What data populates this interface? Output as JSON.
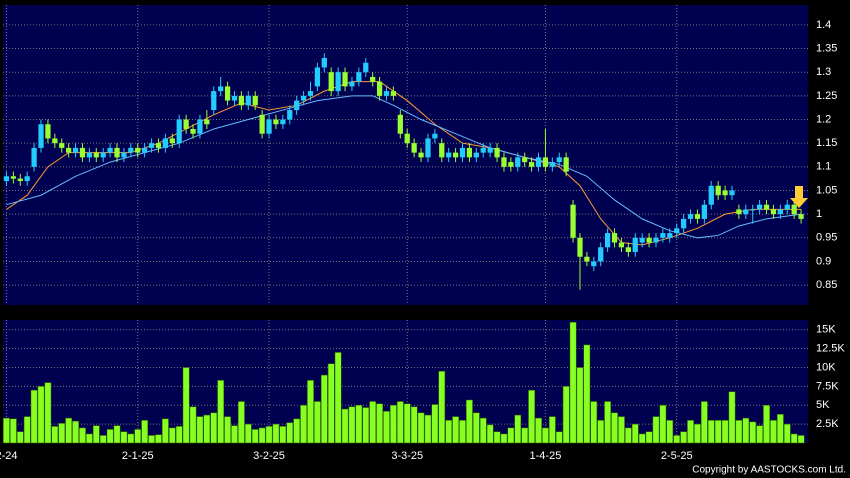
{
  "chart_data": {
    "type": "candlestick",
    "copyright": "Copyright by AASTOCKS.com Ltd.",
    "up_color": "#22ccff",
    "down_color": "#99ff33",
    "volume_color": "#88ff22",
    "ylim": [
      0.808,
      1.442
    ],
    "yticks": [
      1.4,
      1.35,
      1.3,
      1.25,
      1.2,
      1.15,
      1.1,
      1.05,
      1,
      0.95,
      0.9,
      0.85
    ],
    "xlim": [
      -0.5,
      116
    ],
    "xticks": [
      {
        "value": 0,
        "label": "2-24"
      },
      {
        "value": 19,
        "label": "2-1-25"
      },
      {
        "value": 38,
        "label": "3-2-25"
      },
      {
        "value": 58,
        "label": "3-3-25"
      },
      {
        "value": 78,
        "label": "1-4-25"
      },
      {
        "value": 97,
        "label": "2-5-25"
      }
    ],
    "volume_ylim": [
      0,
      16300
    ],
    "volume_ticks": [
      {
        "value": 15000,
        "label": "15K"
      },
      {
        "value": 12500,
        "label": "12.5K"
      },
      {
        "value": 10000,
        "label": "10K"
      },
      {
        "value": 7500,
        "label": "7.5K"
      },
      {
        "value": 5000,
        "label": "5K"
      },
      {
        "value": 2500,
        "label": "2.5K"
      }
    ],
    "grid": true,
    "ohlc": [
      [
        1.07,
        1.09,
        1.06,
        1.08
      ],
      [
        1.08,
        1.09,
        1.065,
        1.075
      ],
      [
        1.075,
        1.085,
        1.06,
        1.07
      ],
      [
        1.07,
        1.09,
        1.06,
        1.08
      ],
      [
        1.1,
        1.15,
        1.09,
        1.14
      ],
      [
        1.14,
        1.2,
        1.13,
        1.19
      ],
      [
        1.19,
        1.2,
        1.15,
        1.16
      ],
      [
        1.16,
        1.17,
        1.14,
        1.15
      ],
      [
        1.15,
        1.16,
        1.13,
        1.14
      ],
      [
        1.14,
        1.15,
        1.12,
        1.13
      ],
      [
        1.13,
        1.15,
        1.12,
        1.14
      ],
      [
        1.14,
        1.15,
        1.11,
        1.12
      ],
      [
        1.12,
        1.14,
        1.11,
        1.13
      ],
      [
        1.13,
        1.14,
        1.11,
        1.12
      ],
      [
        1.12,
        1.14,
        1.11,
        1.13
      ],
      [
        1.13,
        1.15,
        1.12,
        1.14
      ],
      [
        1.14,
        1.15,
        1.11,
        1.12
      ],
      [
        1.12,
        1.14,
        1.11,
        1.13
      ],
      [
        1.13,
        1.15,
        1.12,
        1.14
      ],
      [
        1.14,
        1.15,
        1.12,
        1.13
      ],
      [
        1.13,
        1.15,
        1.12,
        1.14
      ],
      [
        1.14,
        1.16,
        1.13,
        1.15
      ],
      [
        1.15,
        1.16,
        1.13,
        1.14
      ],
      [
        1.14,
        1.17,
        1.13,
        1.16
      ],
      [
        1.16,
        1.17,
        1.14,
        1.15
      ],
      [
        1.15,
        1.21,
        1.14,
        1.2
      ],
      [
        1.2,
        1.21,
        1.17,
        1.18
      ],
      [
        1.18,
        1.19,
        1.16,
        1.17
      ],
      [
        1.17,
        1.21,
        1.16,
        1.2
      ],
      [
        1.2,
        1.22,
        1.18,
        1.19
      ],
      [
        1.22,
        1.27,
        1.21,
        1.26
      ],
      [
        1.26,
        1.29,
        1.25,
        1.27
      ],
      [
        1.27,
        1.28,
        1.23,
        1.24
      ],
      [
        1.24,
        1.26,
        1.23,
        1.25
      ],
      [
        1.25,
        1.26,
        1.22,
        1.23
      ],
      [
        1.23,
        1.26,
        1.22,
        1.25
      ],
      [
        1.25,
        1.26,
        1.22,
        1.23
      ],
      [
        1.21,
        1.22,
        1.16,
        1.17
      ],
      [
        1.17,
        1.21,
        1.16,
        1.2
      ],
      [
        1.2,
        1.21,
        1.18,
        1.19
      ],
      [
        1.19,
        1.21,
        1.18,
        1.2
      ],
      [
        1.2,
        1.23,
        1.19,
        1.22
      ],
      [
        1.22,
        1.25,
        1.21,
        1.24
      ],
      [
        1.24,
        1.26,
        1.23,
        1.25
      ],
      [
        1.25,
        1.28,
        1.24,
        1.26
      ],
      [
        1.27,
        1.32,
        1.26,
        1.31
      ],
      [
        1.31,
        1.34,
        1.3,
        1.33
      ],
      [
        1.3,
        1.31,
        1.25,
        1.26
      ],
      [
        1.26,
        1.31,
        1.25,
        1.3
      ],
      [
        1.3,
        1.31,
        1.26,
        1.27
      ],
      [
        1.27,
        1.29,
        1.26,
        1.28
      ],
      [
        1.28,
        1.31,
        1.27,
        1.3
      ],
      [
        1.3,
        1.33,
        1.29,
        1.32
      ],
      [
        1.29,
        1.3,
        1.27,
        1.28
      ],
      [
        1.28,
        1.29,
        1.24,
        1.25
      ],
      [
        1.25,
        1.27,
        1.24,
        1.26
      ],
      [
        1.26,
        1.27,
        1.24,
        1.25
      ],
      [
        1.21,
        1.22,
        1.16,
        1.17
      ],
      [
        1.17,
        1.18,
        1.14,
        1.15
      ],
      [
        1.15,
        1.16,
        1.12,
        1.13
      ],
      [
        1.13,
        1.14,
        1.11,
        1.12
      ],
      [
        1.12,
        1.17,
        1.11,
        1.16
      ],
      [
        1.16,
        1.18,
        1.15,
        1.17
      ],
      [
        1.15,
        1.16,
        1.11,
        1.12
      ],
      [
        1.12,
        1.14,
        1.11,
        1.13
      ],
      [
        1.13,
        1.14,
        1.11,
        1.12
      ],
      [
        1.12,
        1.15,
        1.11,
        1.14
      ],
      [
        1.14,
        1.15,
        1.11,
        1.12
      ],
      [
        1.12,
        1.14,
        1.11,
        1.13
      ],
      [
        1.13,
        1.15,
        1.12,
        1.14
      ],
      [
        1.13,
        1.15,
        1.12,
        1.14
      ],
      [
        1.14,
        1.15,
        1.11,
        1.12
      ],
      [
        1.12,
        1.13,
        1.09,
        1.1
      ],
      [
        1.11,
        1.12,
        1.09,
        1.1
      ],
      [
        1.1,
        1.13,
        1.09,
        1.12
      ],
      [
        1.12,
        1.13,
        1.1,
        1.11
      ],
      [
        1.11,
        1.12,
        1.09,
        1.1
      ],
      [
        1.1,
        1.13,
        1.09,
        1.12
      ],
      [
        1.12,
        1.18,
        1.09,
        1.1
      ],
      [
        1.1,
        1.12,
        1.09,
        1.11
      ],
      [
        1.11,
        1.13,
        1.1,
        1.12
      ],
      [
        1.12,
        1.13,
        1.08,
        1.09
      ],
      [
        1.02,
        1.03,
        0.94,
        0.95
      ],
      [
        0.95,
        0.96,
        0.84,
        0.91
      ],
      [
        0.91,
        0.92,
        0.89,
        0.9
      ],
      [
        0.89,
        0.91,
        0.88,
        0.9
      ],
      [
        0.9,
        0.94,
        0.89,
        0.93
      ],
      [
        0.93,
        0.97,
        0.92,
        0.96
      ],
      [
        0.96,
        0.97,
        0.93,
        0.94
      ],
      [
        0.94,
        0.95,
        0.92,
        0.93
      ],
      [
        0.93,
        0.94,
        0.91,
        0.92
      ],
      [
        0.92,
        0.96,
        0.91,
        0.95
      ],
      [
        0.94,
        0.96,
        0.93,
        0.95
      ],
      [
        0.95,
        0.96,
        0.93,
        0.94
      ],
      [
        0.94,
        0.96,
        0.93,
        0.95
      ],
      [
        0.95,
        0.97,
        0.94,
        0.96
      ],
      [
        0.95,
        0.97,
        0.94,
        0.96
      ],
      [
        0.96,
        0.98,
        0.95,
        0.97
      ],
      [
        0.97,
        1.0,
        0.96,
        0.99
      ],
      [
        0.99,
        1.01,
        0.98,
        1.0
      ],
      [
        1.0,
        1.01,
        0.98,
        0.99
      ],
      [
        0.99,
        1.03,
        0.98,
        1.02
      ],
      [
        1.02,
        1.07,
        1.01,
        1.06
      ],
      [
        1.06,
        1.07,
        1.03,
        1.04
      ],
      [
        1.05,
        1.06,
        1.03,
        1.04
      ],
      [
        1.04,
        1.06,
        1.03,
        1.05
      ],
      [
        1.01,
        1.02,
        0.99,
        1.0
      ],
      [
        1.0,
        1.02,
        0.99,
        1.01
      ],
      [
        1.01,
        1.02,
        0.98,
        1.01
      ],
      [
        1.01,
        1.03,
        1.0,
        1.02
      ],
      [
        1.02,
        1.03,
        1.0,
        1.01
      ],
      [
        1.01,
        1.02,
        0.99,
        1.0
      ],
      [
        1.0,
        1.02,
        0.99,
        1.01
      ],
      [
        1.01,
        1.03,
        1.0,
        1.02
      ],
      [
        1.02,
        1.03,
        0.99,
        1.0
      ],
      [
        1.0,
        1.01,
        0.98,
        0.99
      ]
    ],
    "volume": [
      3300,
      3200,
      1500,
      3500,
      7000,
      7500,
      8000,
      2200,
      2600,
      3300,
      2900,
      2000,
      1200,
      2300,
      1000,
      1800,
      2300,
      1500,
      1200,
      1800,
      3000,
      1000,
      1100,
      3200,
      2000,
      2200,
      10000,
      4800,
      3500,
      3700,
      4000,
      8300,
      3500,
      2300,
      5500,
      2500,
      1800,
      2000,
      2200,
      2500,
      2200,
      2700,
      3200,
      5000,
      8300,
      5500,
      9000,
      10500,
      12000,
      4500,
      4800,
      5000,
      4700,
      5500,
      5200,
      4200,
      5000,
      5500,
      5200,
      4800,
      4000,
      3700,
      5100,
      9500,
      3000,
      3500,
      3000,
      5700,
      4000,
      3300,
      2400,
      1500,
      1200,
      2000,
      3700,
      2000,
      7000,
      3300,
      2000,
      3500,
      1500,
      7500,
      16000,
      10000,
      13000,
      5500,
      3000,
      5500,
      4000,
      3500,
      2000,
      2500,
      1200,
      1500,
      3500,
      5000,
      3000,
      1000,
      1500,
      3000,
      2500,
      5500,
      3000,
      3000,
      3000,
      6800,
      3000,
      3300,
      2800,
      2300,
      5000,
      3000,
      3800,
      2500,
      1200,
      1000
    ],
    "series": [
      {
        "color": "#ff9933",
        "x": [
          0,
          3,
          6,
          9,
          13,
          18,
          22,
          26,
          30,
          34,
          38,
          42,
          46,
          50,
          54,
          58,
          62,
          66,
          70,
          75,
          80,
          83,
          86,
          89,
          92,
          96,
          100,
          104,
          108,
          112,
          115
        ],
        "values": [
          1.01,
          1.04,
          1.1,
          1.13,
          1.13,
          1.13,
          1.15,
          1.18,
          1.21,
          1.235,
          1.22,
          1.23,
          1.26,
          1.28,
          1.28,
          1.24,
          1.19,
          1.15,
          1.14,
          1.12,
          1.1,
          1.06,
          0.99,
          0.94,
          0.935,
          0.95,
          0.97,
          1.0,
          1.01,
          1.01,
          1.01
        ]
      },
      {
        "color": "#66bbff",
        "x": [
          0,
          5,
          10,
          15,
          20,
          25,
          30,
          35,
          40,
          45,
          50,
          53,
          56,
          60,
          65,
          70,
          75,
          80,
          84,
          88,
          92,
          96,
          100,
          103,
          106,
          110,
          115
        ],
        "values": [
          1.02,
          1.04,
          1.08,
          1.11,
          1.13,
          1.15,
          1.18,
          1.2,
          1.22,
          1.24,
          1.25,
          1.25,
          1.23,
          1.2,
          1.17,
          1.14,
          1.12,
          1.105,
          1.08,
          1.03,
          0.99,
          0.965,
          0.95,
          0.955,
          0.975,
          0.99,
          1.0
        ]
      }
    ]
  }
}
